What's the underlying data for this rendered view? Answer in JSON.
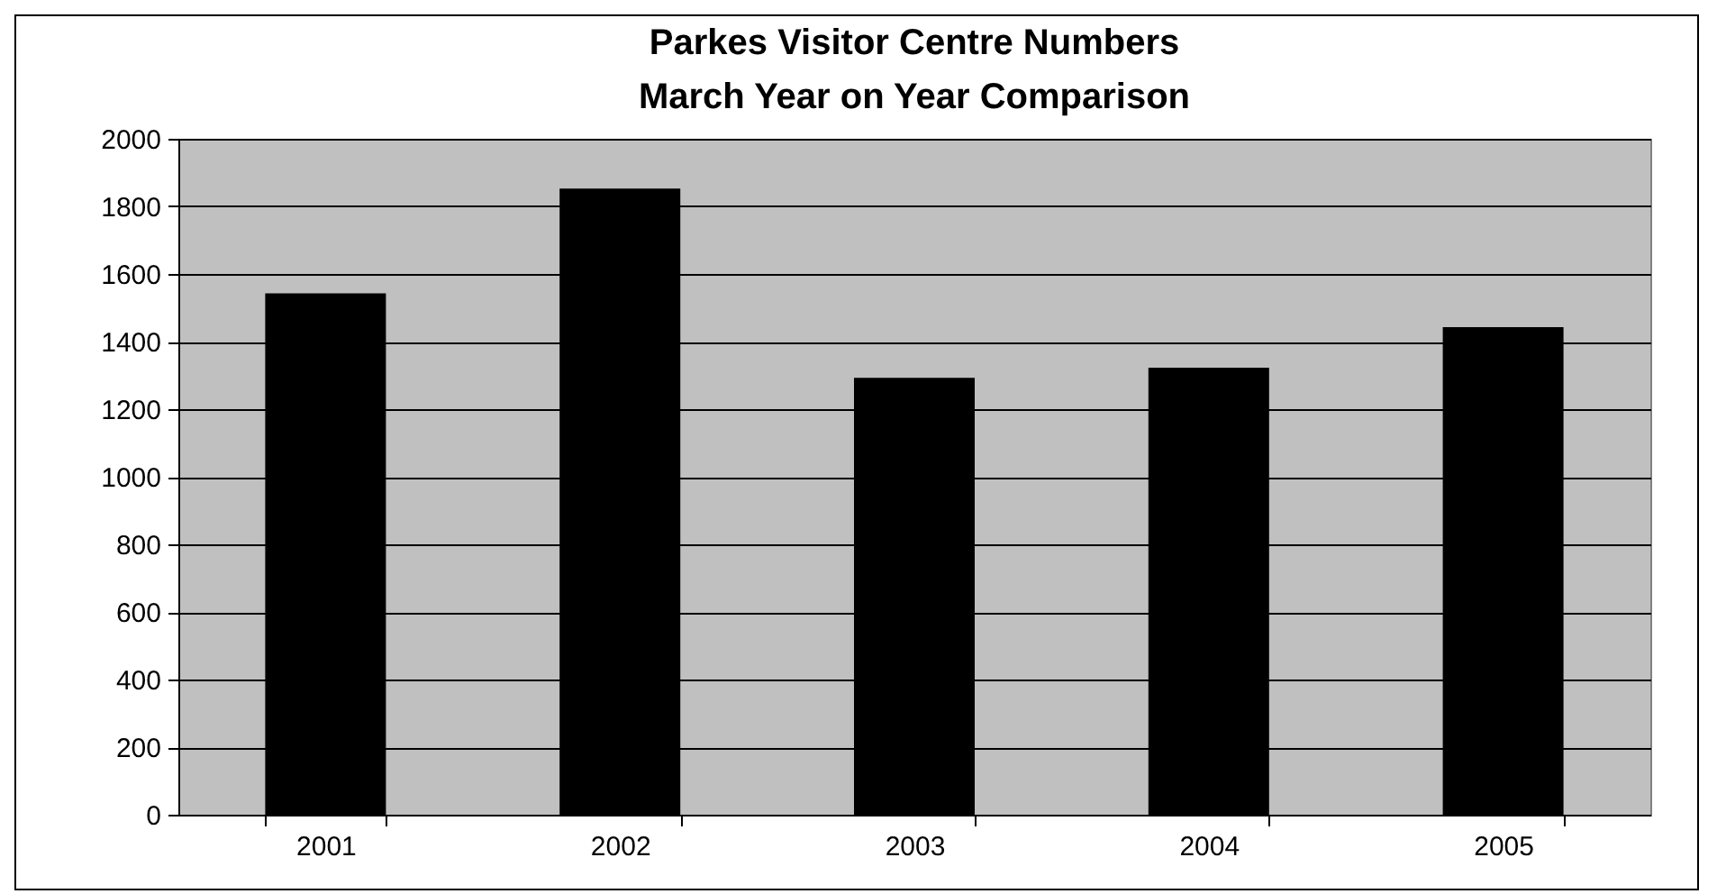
{
  "chart_data": {
    "type": "bar",
    "title": "Parkes Visitor Centre Numbers\nMarch Year on Year Comparison",
    "categories": [
      "2001",
      "2002",
      "2003",
      "2004",
      "2005"
    ],
    "values": [
      1540,
      1850,
      1290,
      1320,
      1440
    ],
    "color": "#000000",
    "ylim": [
      0,
      2000
    ],
    "yticks": [
      0,
      200,
      400,
      600,
      800,
      1000,
      1200,
      1400,
      1600,
      1800,
      2000
    ],
    "grid": "y"
  }
}
